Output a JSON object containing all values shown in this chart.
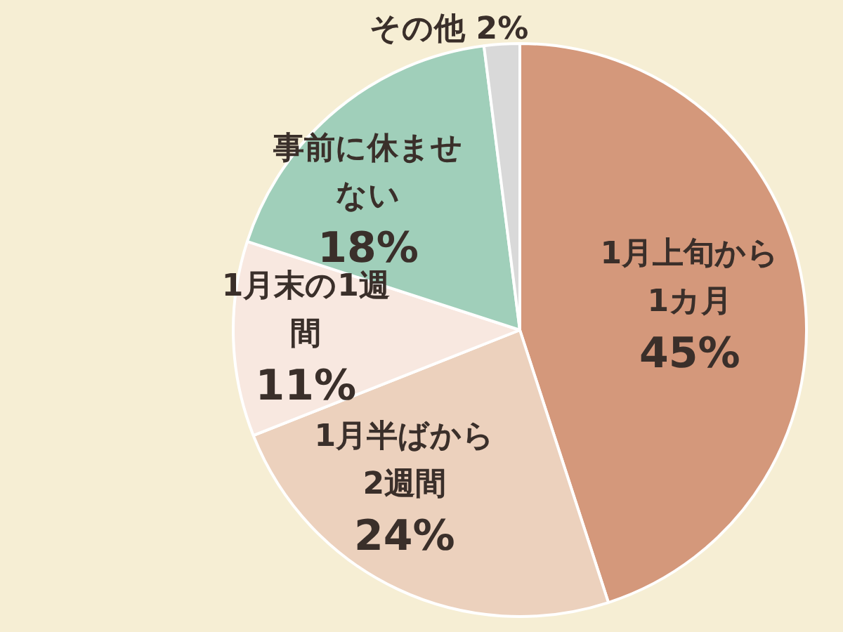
{
  "chart_data": {
    "type": "pie",
    "categories": [
      "1月上旬から1カ月",
      "1月半ばから2週間",
      "1月末の1週間",
      "事前に休ませない",
      "その他"
    ],
    "values": [
      45,
      24,
      11,
      18,
      2
    ],
    "value_labels": [
      "45%",
      "24%",
      "11%",
      "18%",
      "2%"
    ],
    "colors": [
      "#d4987b",
      "#ecd1bd",
      "#f8e8e0",
      "#a0cfba",
      "#d9d9d9"
    ],
    "legend": false
  }
}
